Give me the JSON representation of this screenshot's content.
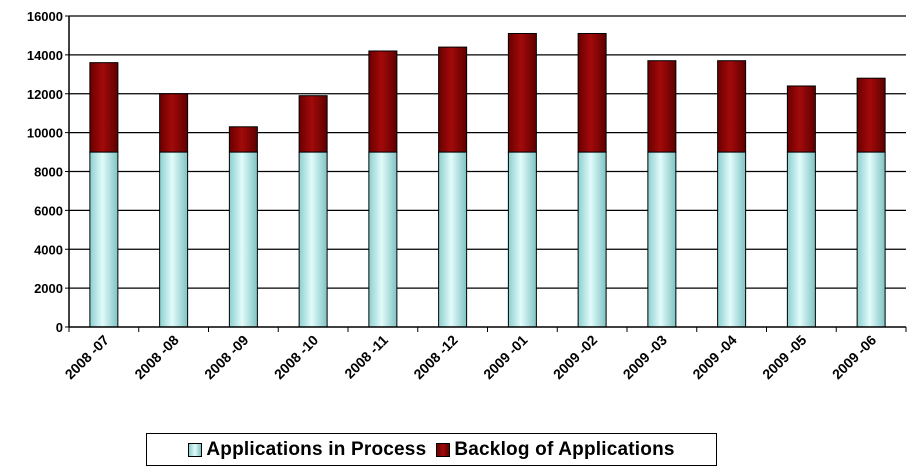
{
  "chart_data": {
    "type": "bar",
    "stacked": true,
    "title": "",
    "xlabel": "",
    "ylabel": "",
    "ylim": [
      0,
      16000
    ],
    "yticks": [
      0,
      2000,
      4000,
      6000,
      8000,
      10000,
      12000,
      14000,
      16000
    ],
    "ytick_labels": [
      "0",
      "2000",
      "4000",
      "6000",
      "8000",
      "10000",
      "12000",
      "14000",
      "16000"
    ],
    "grid": true,
    "legend_position": "bottom",
    "categories": [
      "2008 -07",
      "2008 -08",
      "2008 -09",
      "2008 -10",
      "2008 -11",
      "2008 -12",
      "2009 -01",
      "2009 -02",
      "2009 -03",
      "2009 -04",
      "2009 -05",
      "2009 -06"
    ],
    "series": [
      {
        "name": "Applications in Process",
        "color": "#b3eaea",
        "values": [
          9000,
          9000,
          9000,
          9000,
          9000,
          9000,
          9000,
          9000,
          9000,
          9000,
          9000,
          9000
        ]
      },
      {
        "name": "Backlog of Applications",
        "color": "#8b0000",
        "values": [
          4600,
          3000,
          1300,
          2900,
          5200,
          5400,
          6100,
          6100,
          4700,
          4700,
          3400,
          3800
        ]
      }
    ]
  }
}
